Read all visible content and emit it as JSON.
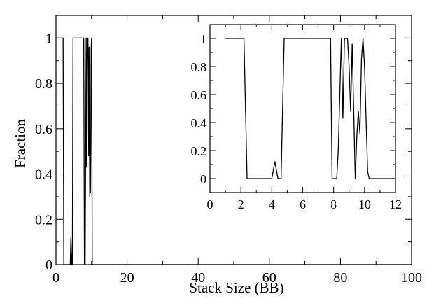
{
  "chart_data": [
    {
      "type": "line",
      "panel": "main",
      "title": "",
      "xlabel": "Stack Size (BB)",
      "ylabel": "Fraction",
      "xlim": [
        0,
        100
      ],
      "ylim": [
        0,
        1.1
      ],
      "xticks": [
        0,
        20,
        40,
        60,
        80,
        100
      ],
      "xtick_labels": [
        "0",
        "20",
        "40",
        "60",
        "80",
        "100"
      ],
      "yticks": [
        0,
        0.2,
        0.4,
        0.6,
        0.8,
        1
      ],
      "ytick_labels": [
        "0",
        "0.2",
        "0.4",
        "0.6",
        "0.8",
        "1"
      ],
      "grid": false,
      "series": [
        {
          "x": [
            0,
            2,
            2.2,
            4,
            4.2,
            4.4,
            4.6,
            4.8,
            7.8,
            8.0,
            8.2,
            8.5,
            8.6,
            8.8,
            9.0,
            9.2,
            9.3,
            9.5,
            9.6,
            9.7,
            9.9,
            10.0,
            10.2,
            100
          ],
          "y": [
            1,
            1,
            0,
            0,
            0.12,
            0,
            0,
            1,
            1,
            0,
            0,
            1,
            0.43,
            1,
            1,
            0.48,
            0.96,
            0.3,
            0.48,
            0.32,
            0.95,
            1.0,
            0,
            0
          ]
        }
      ]
    },
    {
      "type": "line",
      "panel": "inset",
      "title": "",
      "xlabel": "",
      "ylabel": "",
      "xlim": [
        0,
        12
      ],
      "ylim": [
        -0.1,
        1.1
      ],
      "xticks": [
        0,
        2,
        4,
        6,
        8,
        10,
        12
      ],
      "xtick_labels": [
        "0",
        "2",
        "4",
        "6",
        "8",
        "10",
        "12"
      ],
      "yticks": [
        0,
        0.2,
        0.4,
        0.6,
        0.8,
        1
      ],
      "ytick_labels": [
        "0",
        "0.2",
        "0.4",
        "0.6",
        "0.8",
        "1"
      ],
      "grid": false,
      "series": [
        {
          "x": [
            1.0,
            2.2,
            2.4,
            4.0,
            4.2,
            4.4,
            4.6,
            4.8,
            7.8,
            7.9,
            8.2,
            8.3,
            8.5,
            8.6,
            8.7,
            8.9,
            9.0,
            9.1,
            9.2,
            9.4,
            9.5,
            9.6,
            9.7,
            9.8,
            9.9,
            10.0,
            10.2,
            10.3,
            12.0
          ],
          "y": [
            1,
            1,
            0,
            0,
            0.12,
            0,
            0,
            1,
            1,
            0,
            0,
            0.2,
            1,
            0.43,
            1,
            1,
            0.8,
            0.48,
            0.96,
            0,
            0.3,
            0.48,
            0.32,
            0.85,
            1.0,
            0.8,
            0.05,
            0,
            0
          ]
        }
      ]
    }
  ]
}
